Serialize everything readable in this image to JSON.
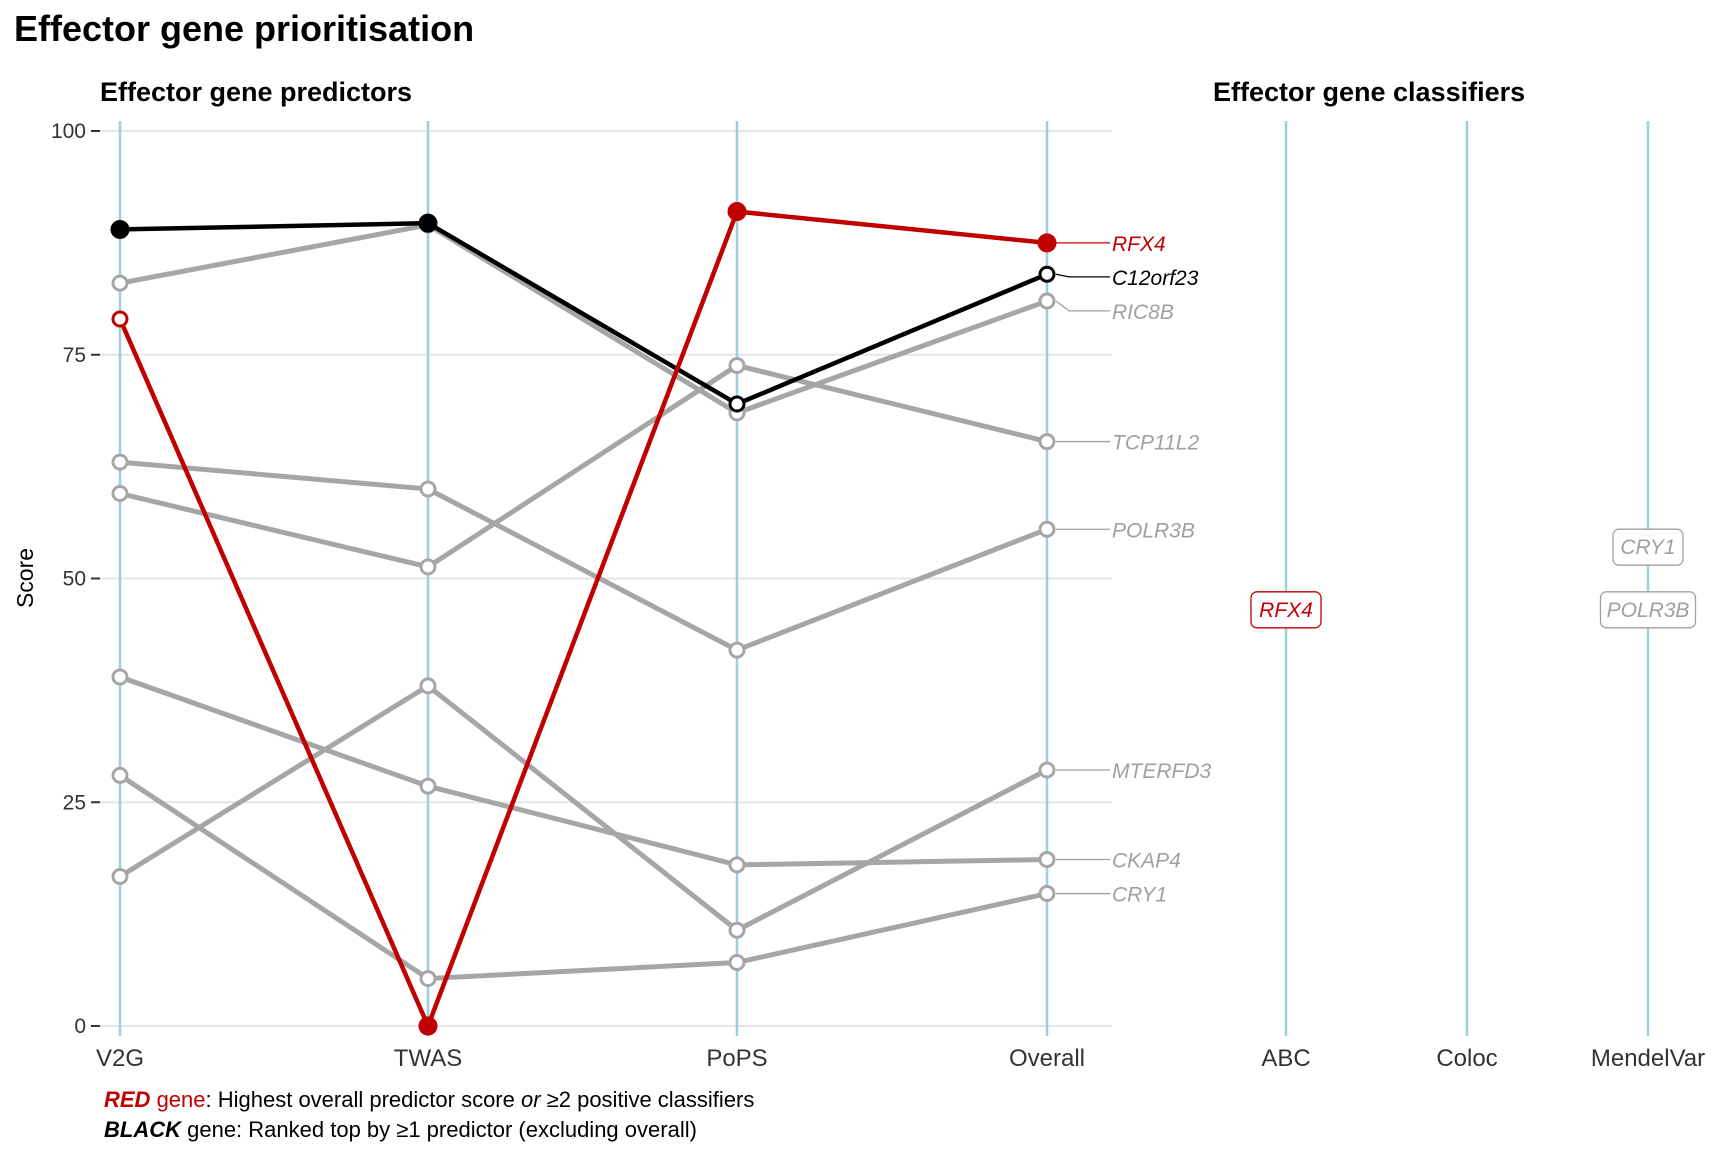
{
  "title": "Effector gene prioritisation",
  "chart_data": {
    "type": "line",
    "panels": [
      {
        "title": "Effector gene predictors",
        "ylabel": "Score",
        "ylim": [
          0,
          100
        ],
        "yticks": [
          0,
          25,
          50,
          75,
          100
        ],
        "categories": [
          "V2G",
          "TWAS",
          "PoPS",
          "Overall"
        ],
        "series": [
          {
            "name": "RFX4",
            "role": "red",
            "values": [
              79,
              0,
              91,
              87.5
            ],
            "filled": [
              false,
              true,
              true,
              true
            ]
          },
          {
            "name": "C12orf23",
            "role": "black",
            "values": [
              89,
              89.7,
              69.5,
              84
            ],
            "filled": [
              true,
              true,
              false,
              false
            ]
          },
          {
            "name": "RIC8B",
            "role": "grey",
            "values": [
              83,
              89.5,
              68.5,
              81
            ]
          },
          {
            "name": "TCP11L2",
            "role": "grey",
            "values": [
              59.5,
              51.3,
              73.8,
              65.3
            ]
          },
          {
            "name": "POLR3B",
            "role": "grey",
            "values": [
              63,
              60,
              42,
              55.5
            ]
          },
          {
            "name": "MTERFD3",
            "role": "grey",
            "values": [
              16.7,
              38,
              10.7,
              28.6
            ]
          },
          {
            "name": "CKAP4",
            "role": "grey",
            "values": [
              39,
              26.8,
              18,
              18.6
            ]
          },
          {
            "name": "CRY1",
            "role": "grey",
            "values": [
              28,
              5.3,
              7.1,
              14.8
            ]
          }
        ]
      },
      {
        "title": "Effector gene classifiers",
        "categories": [
          "ABC",
          "Coloc",
          "MendelVar"
        ],
        "labels": [
          {
            "gene": "RFX4",
            "classifier": "ABC",
            "role": "red",
            "y": 46.5
          },
          {
            "gene": "CRY1",
            "classifier": "MendelVar",
            "role": "grey",
            "y": 53.5
          },
          {
            "gene": "POLR3B",
            "classifier": "MendelVar",
            "role": "grey",
            "y": 46.5
          }
        ]
      }
    ],
    "colors": {
      "red": "#c00000",
      "black": "#000000",
      "grey": "#a6a6a6",
      "axis": "#9ecfdc",
      "grid": "#e6e6e6"
    }
  },
  "footnote": {
    "line1_key": "RED",
    "line1_key2": " gene",
    "line1_text": ": Highest overall predictor score ",
    "line1_or": "or",
    "line1_text2": " ≥2 positive classifiers",
    "line2_key": "BLACK",
    "line2_text": " gene: Ranked top by ≥1 predictor (excluding overall)"
  }
}
